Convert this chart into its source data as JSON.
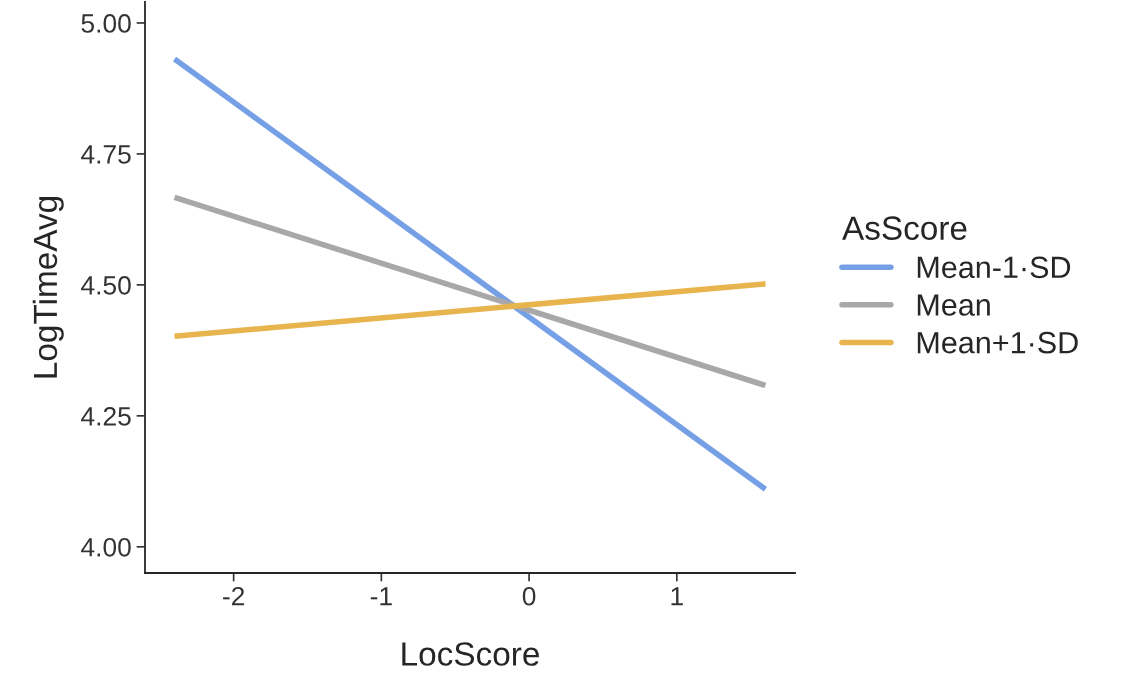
{
  "chart_data": {
    "type": "line",
    "xlabel": "LocScore",
    "ylabel": "LogTimeAvg",
    "legend_title": "AsScore",
    "x": [
      -2.4,
      1.6
    ],
    "series": [
      {
        "name": "Mean-1·SD",
        "color": "#76a0e6",
        "values": [
          4.931,
          4.11
        ]
      },
      {
        "name": "Mean",
        "color": "#a8a8a8",
        "values": [
          4.667,
          4.308
        ]
      },
      {
        "name": "Mean+1·SD",
        "color": "#e8b44e",
        "values": [
          4.402,
          4.502
        ]
      }
    ],
    "xlim": [
      -2.6,
      1.8
    ],
    "xticks": [
      {
        "value": -2,
        "label": "-2"
      },
      {
        "value": -1,
        "label": "-1"
      },
      0,
      1
    ],
    "ylim": [
      3.95,
      5.04
    ],
    "yticks": [
      {
        "value": 4.0,
        "label": "4.00"
      },
      {
        "value": 4.25,
        "label": "4.25"
      },
      {
        "value": 4.5,
        "label": "4.50"
      },
      {
        "value": 4.75,
        "label": "4.75"
      },
      {
        "value": 5.0,
        "label": "5.00"
      }
    ],
    "grid": false,
    "legend": "right",
    "marker": "none",
    "line_style": "solid"
  }
}
